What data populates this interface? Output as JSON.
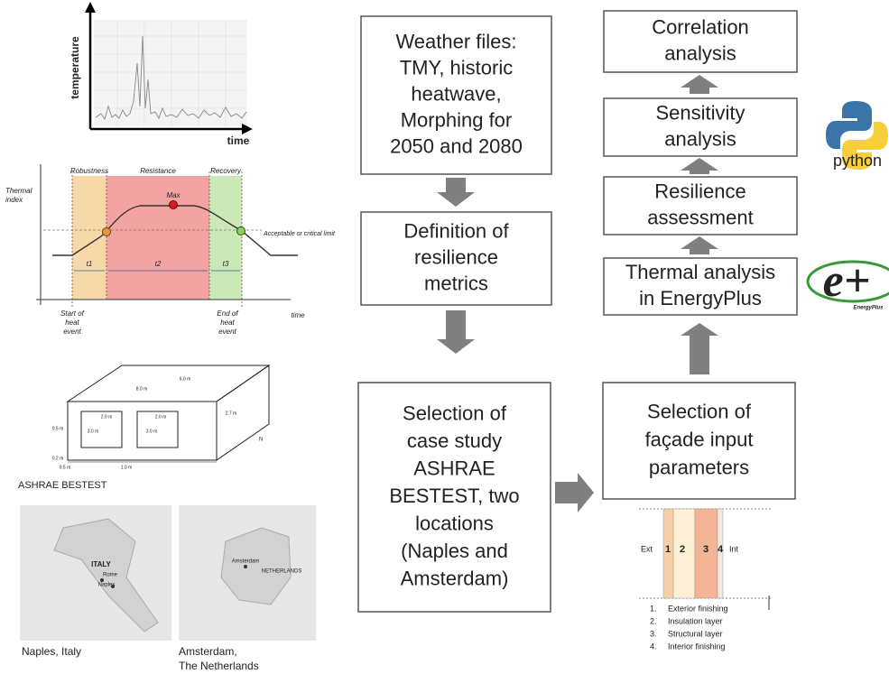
{
  "flowchart": {
    "nodes": [
      {
        "lines": [
          "Weather files:",
          "TMY, historic",
          "heatwave,",
          "Morphing for",
          "2050 and 2080"
        ]
      },
      {
        "lines": [
          "Definition of",
          "resilience",
          "metrics"
        ]
      },
      {
        "lines": [
          "Selection of",
          "case study",
          "ASHRAE",
          "BESTEST, two",
          "locations",
          "(Naples and",
          "Amsterdam)"
        ]
      },
      {
        "lines": [
          "Selection of",
          "façade input",
          "parameters"
        ]
      },
      {
        "lines": [
          "Thermal analysis",
          "in EnergyPlus"
        ]
      },
      {
        "lines": [
          "Resilience",
          "assessment"
        ]
      },
      {
        "lines": [
          "Sensitivity",
          "analysis"
        ]
      },
      {
        "lines": [
          "Correlation",
          "analysis"
        ]
      }
    ]
  },
  "temperature_plot": {
    "y_label": "temperature",
    "x_label": "time"
  },
  "resilience_plot": {
    "y_label": [
      "Thermal",
      "index"
    ],
    "phases": [
      "Robustness",
      "Resistance",
      "Recovery"
    ],
    "max_label": "Max",
    "limit_label": "Acceptable or critical limit",
    "durations": [
      "t1",
      "t2",
      "t3"
    ],
    "start_label": [
      "Start of",
      "heat",
      "event"
    ],
    "end_label": [
      "End of",
      "heat",
      "event"
    ],
    "x_label": "time"
  },
  "bestest": {
    "caption": "ASHRAE BESTEST",
    "dimensions": [
      "8.0 m",
      "6.0 m",
      "2.7 m",
      "0.5 m",
      "0.2 m",
      "2.0 m",
      "3.0 m",
      "2.0 m",
      "3.0 m",
      "0.5 m",
      "1.0 m"
    ],
    "north": "N"
  },
  "maps": [
    {
      "labels": [
        "ITALY",
        "Rome",
        "Naples"
      ],
      "caption": [
        "Naples, Italy"
      ]
    },
    {
      "labels": [
        "Amsterdam",
        "NETHERLANDS"
      ],
      "caption": [
        "Amsterdam,",
        "The Netherlands"
      ]
    }
  ],
  "wall_section": {
    "outside": "Ext",
    "inside": "Int",
    "layers": [
      "1",
      "2",
      "3",
      "4"
    ],
    "legend": [
      {
        "number": "1.",
        "text": "Exterior finishing"
      },
      {
        "number": "2.",
        "text": "Insulation layer"
      },
      {
        "number": "3.",
        "text": "Structural layer"
      },
      {
        "number": "4.",
        "text": "Interior finishing"
      }
    ]
  },
  "logos": {
    "python": "python",
    "energyplus": "EnergyPlus"
  }
}
